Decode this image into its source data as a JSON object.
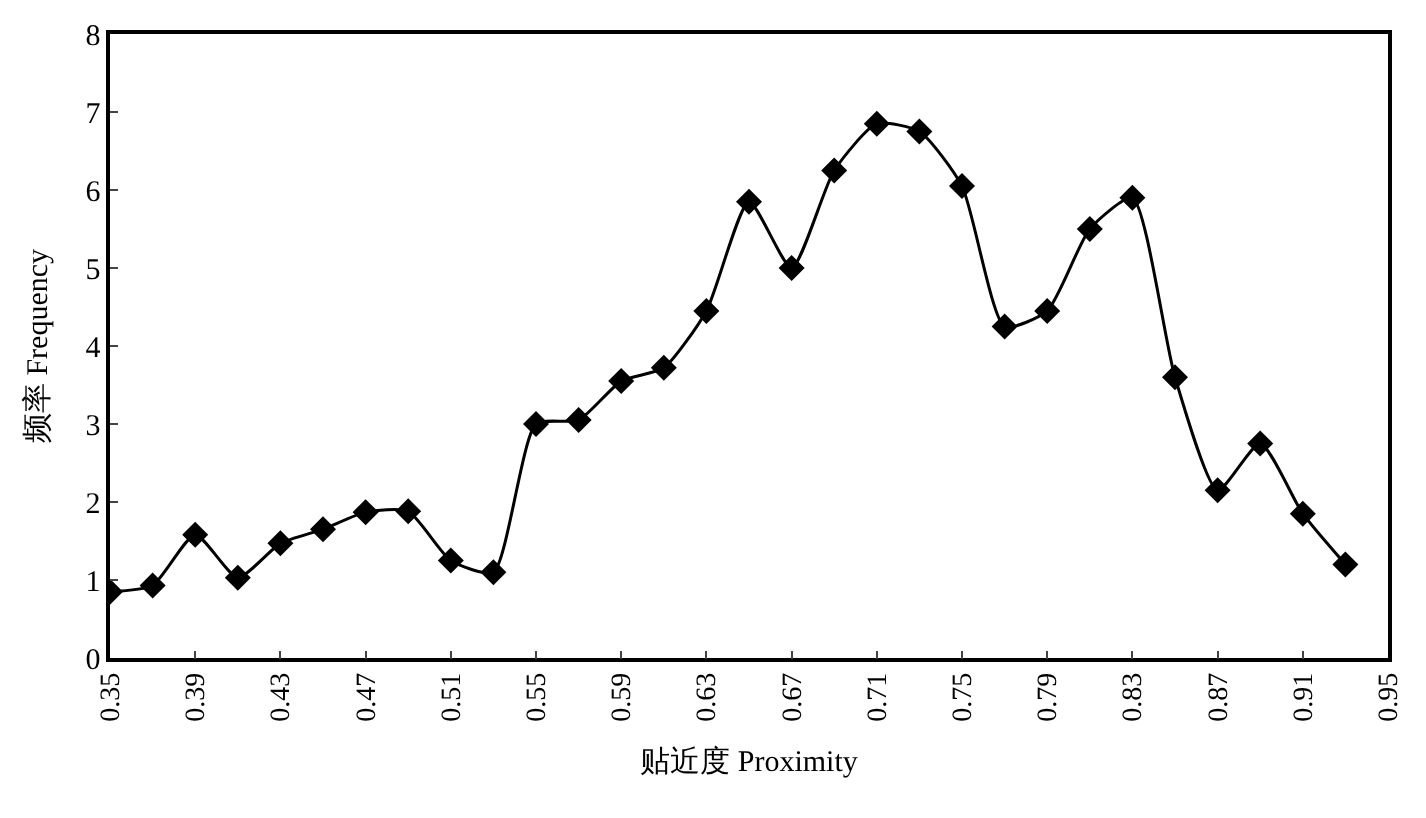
{
  "chart_data": {
    "type": "line",
    "xlabel": "贴近度 Proximity",
    "ylabel": "频率 Frequency",
    "x": [
      0.35,
      0.37,
      0.39,
      0.41,
      0.43,
      0.45,
      0.47,
      0.49,
      0.51,
      0.53,
      0.55,
      0.57,
      0.59,
      0.61,
      0.63,
      0.65,
      0.67,
      0.69,
      0.71,
      0.73,
      0.75,
      0.77,
      0.79,
      0.81,
      0.83,
      0.85,
      0.87,
      0.89,
      0.91,
      0.93
    ],
    "values": [
      0.85,
      0.93,
      1.58,
      1.03,
      1.47,
      1.65,
      1.87,
      1.88,
      1.25,
      1.1,
      3.0,
      3.05,
      3.55,
      3.72,
      4.45,
      5.85,
      5.0,
      6.25,
      6.85,
      6.75,
      6.05,
      4.25,
      4.45,
      5.5,
      5.9,
      3.6,
      2.15,
      2.75,
      1.85,
      1.2
    ],
    "color": "#000000",
    "marker": "diamond",
    "line_style": "solid",
    "xlim": [
      0.35,
      0.95
    ],
    "xticks": [
      0.35,
      0.39,
      0.43,
      0.47,
      0.51,
      0.55,
      0.59,
      0.63,
      0.67,
      0.71,
      0.75,
      0.79,
      0.83,
      0.87,
      0.91,
      0.95
    ],
    "ylim": [
      0,
      8
    ],
    "yticks": [
      0,
      1,
      2,
      3,
      4,
      5,
      6,
      7,
      8
    ]
  }
}
